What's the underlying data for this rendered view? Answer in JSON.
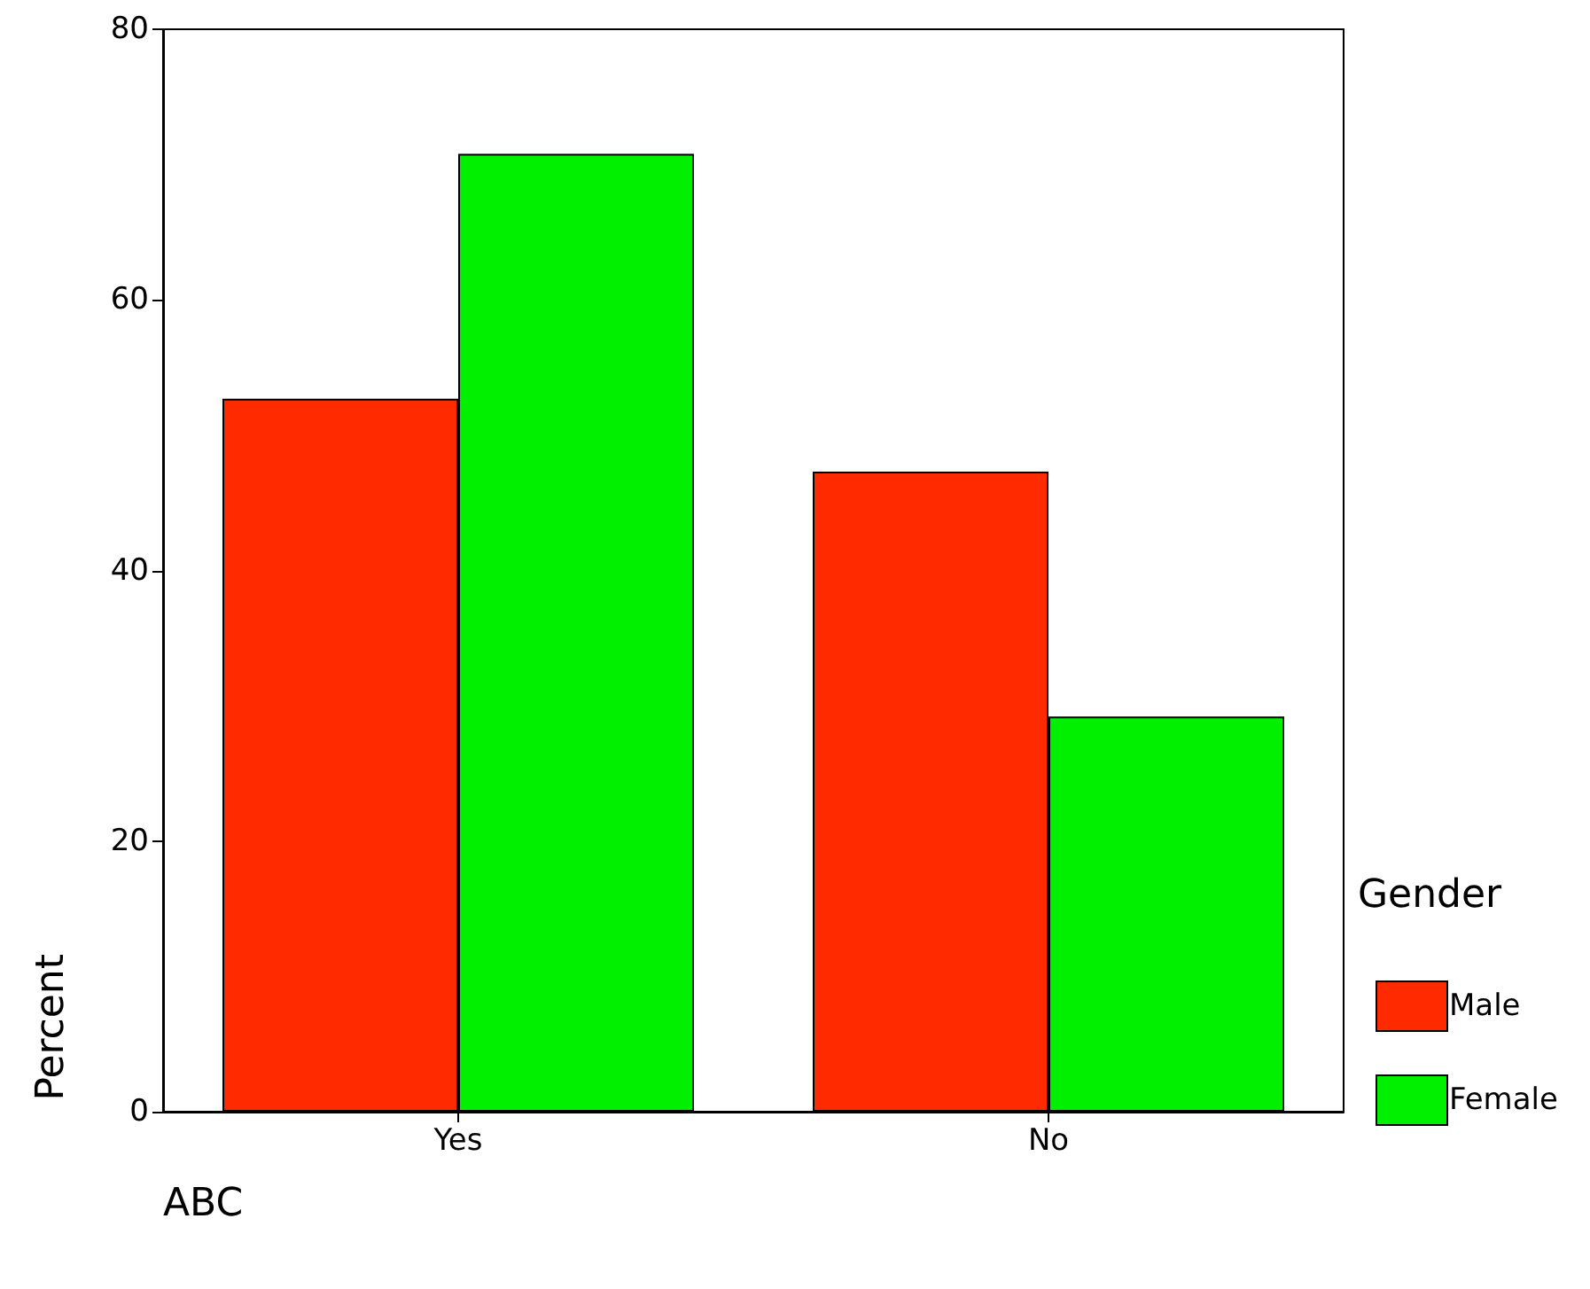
{
  "chart_data": {
    "type": "bar",
    "categories": [
      "Yes",
      "No"
    ],
    "xlabel": "ABC",
    "ylabel": "Percent",
    "legend_title": "Gender",
    "series": [
      {
        "name": "Male",
        "color": "#ff2a00",
        "values": [
          52.7,
          47.3
        ]
      },
      {
        "name": "Female",
        "color": "#00f000",
        "values": [
          70.8,
          29.2
        ]
      }
    ],
    "ylim": [
      0,
      80
    ],
    "yticks": [
      0,
      20,
      40,
      60,
      80
    ],
    "grid": false,
    "legend": "bottom right"
  }
}
